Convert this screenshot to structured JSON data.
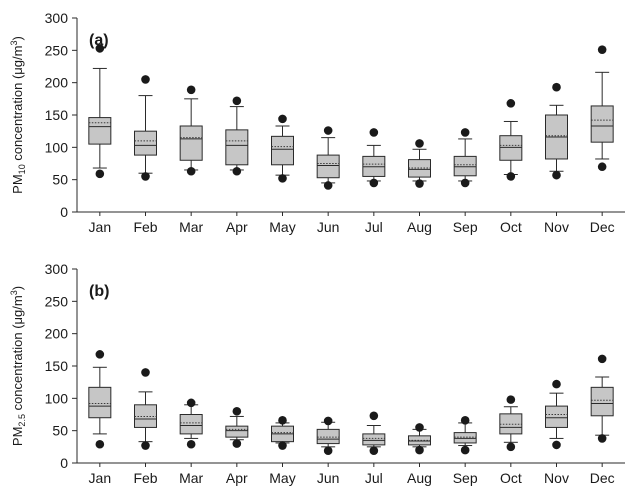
{
  "colors": {
    "box_fill": "#c6c6c6",
    "stroke": "#2a2a2a",
    "outlier": "#1a1a1a",
    "mean_line": "#3a3a3a"
  },
  "chart_data": [
    {
      "type": "box",
      "panel_label": "(a)",
      "ylabel_prefix": "PM",
      "ylabel_sub": "10",
      "ylabel_mid": " concentration (μg/m",
      "ylabel_sup": "3",
      "ylabel_end": ")",
      "ylim": [
        0,
        300
      ],
      "yticks": [
        "0",
        "50",
        "100",
        "150",
        "200",
        "250",
        "300"
      ],
      "categories": [
        "Jan",
        "Feb",
        "Mar",
        "Apr",
        "May",
        "Jun",
        "Jul",
        "Aug",
        "Sep",
        "Oct",
        "Nov",
        "Dec"
      ],
      "whisker_low": [
        68,
        60,
        65,
        65,
        57,
        45,
        48,
        48,
        48,
        58,
        63,
        82
      ],
      "q1": [
        105,
        88,
        80,
        73,
        73,
        53,
        55,
        54,
        56,
        80,
        82,
        108
      ],
      "median": [
        132,
        103,
        113,
        103,
        97,
        72,
        70,
        66,
        70,
        100,
        116,
        133
      ],
      "mean": [
        138,
        110,
        115,
        110,
        101,
        75,
        74,
        68,
        73,
        103,
        118,
        142
      ],
      "q3": [
        146,
        125,
        133,
        127,
        117,
        88,
        86,
        81,
        86,
        118,
        150,
        164
      ],
      "whisker_high": [
        222,
        180,
        175,
        163,
        133,
        115,
        103,
        97,
        113,
        140,
        165,
        216
      ],
      "outlier_low": [
        59,
        55,
        63,
        63,
        52,
        41,
        45,
        44,
        45,
        55,
        57,
        70
      ],
      "outlier_high": [
        253,
        205,
        189,
        172,
        144,
        126,
        123,
        106,
        123,
        168,
        193,
        251
      ]
    },
    {
      "type": "box",
      "panel_label": "(b)",
      "ylabel_prefix": "PM",
      "ylabel_sub": "2.5",
      "ylabel_mid": " concentration (μg/m",
      "ylabel_sup": "3",
      "ylabel_end": ")",
      "ylim": [
        0,
        300
      ],
      "yticks": [
        "0",
        "50",
        "100",
        "150",
        "200",
        "250",
        "300"
      ],
      "categories": [
        "Jan",
        "Feb",
        "Mar",
        "Apr",
        "May",
        "Jun",
        "Jul",
        "Aug",
        "Sep",
        "Oct",
        "Nov",
        "Dec"
      ],
      "whisker_low": [
        45,
        33,
        38,
        36,
        31,
        25,
        25,
        25,
        27,
        32,
        38,
        43
      ],
      "q1": [
        70,
        55,
        45,
        40,
        33,
        30,
        28,
        28,
        31,
        45,
        55,
        73
      ],
      "median": [
        88,
        68,
        58,
        50,
        45,
        37,
        35,
        34,
        38,
        55,
        70,
        92
      ],
      "mean": [
        92,
        72,
        62,
        52,
        47,
        40,
        38,
        35,
        40,
        60,
        75,
        97
      ],
      "q3": [
        117,
        90,
        75,
        57,
        57,
        52,
        45,
        42,
        47,
        76,
        88,
        117
      ],
      "whisker_high": [
        148,
        110,
        90,
        72,
        62,
        63,
        58,
        52,
        62,
        87,
        108,
        133
      ],
      "outlier_low": [
        29,
        27,
        29,
        30,
        27,
        19,
        19,
        20,
        20,
        25,
        28,
        38
      ],
      "outlier_high": [
        168,
        140,
        93,
        80,
        66,
        65,
        73,
        55,
        66,
        98,
        122,
        161
      ]
    }
  ]
}
